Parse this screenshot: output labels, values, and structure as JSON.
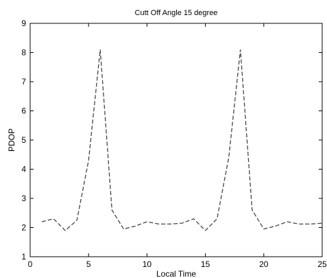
{
  "chart_data": {
    "type": "line",
    "title": "Cutt Off Angle 15 degree",
    "xlabel": "Local Time",
    "ylabel": "PDOP",
    "xlim": [
      0,
      25
    ],
    "ylim": [
      1,
      9
    ],
    "xticks": [
      0,
      5,
      10,
      15,
      20,
      25
    ],
    "yticks": [
      1,
      2,
      3,
      4,
      5,
      6,
      7,
      8,
      9
    ],
    "grid": false,
    "series": [
      {
        "line_style": "dashed",
        "color": "#444444",
        "x": [
          1,
          2,
          3,
          4,
          5,
          6,
          7,
          8,
          9,
          10,
          11,
          12,
          13,
          14,
          15,
          16,
          17,
          18,
          19,
          20,
          21,
          22,
          23,
          24,
          25
        ],
        "y": [
          2.2,
          2.3,
          1.9,
          2.25,
          4.3,
          8.1,
          2.6,
          1.95,
          2.05,
          2.2,
          2.12,
          2.12,
          2.15,
          2.3,
          1.9,
          2.3,
          4.4,
          8.1,
          2.6,
          1.95,
          2.05,
          2.2,
          2.12,
          2.12,
          2.15
        ]
      }
    ]
  }
}
